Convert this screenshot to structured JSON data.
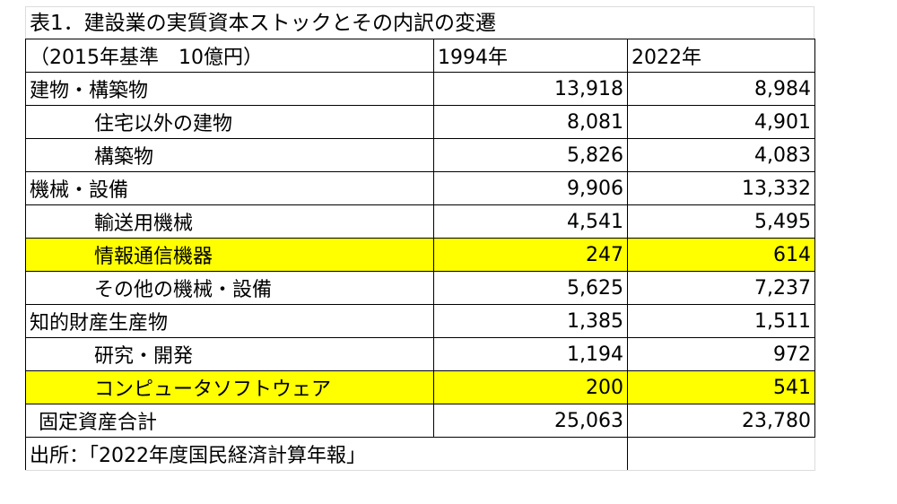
{
  "title": "表1．建設業の実質資本ストックとその内訳の変遷",
  "header": {
    "unit": "（2015年基準　10億円）",
    "col1": "1994年",
    "col2": "2022年"
  },
  "rows": [
    {
      "label": "建物・構築物",
      "v1994": "13,918",
      "v2022": "8,984"
    },
    {
      "label": "住宅以外の建物",
      "v1994": "8,081",
      "v2022": "4,901"
    },
    {
      "label": "構築物",
      "v1994": "5,826",
      "v2022": "4,083"
    },
    {
      "label": "機械・設備",
      "v1994": "9,906",
      "v2022": "13,332"
    },
    {
      "label": "輸送用機械",
      "v1994": "4,541",
      "v2022": "5,495"
    },
    {
      "label": "情報通信機器",
      "v1994": "247",
      "v2022": "614"
    },
    {
      "label": "その他の機械・設備",
      "v1994": "5,625",
      "v2022": "7,237"
    },
    {
      "label": "知的財産生産物",
      "v1994": "1,385",
      "v2022": "1,511"
    },
    {
      "label": "研究・開発",
      "v1994": "1,194",
      "v2022": "972"
    },
    {
      "label": "コンピュータソフトウェア",
      "v1994": "200",
      "v2022": "541"
    },
    {
      "label": "固定資産合計",
      "v1994": "25,063",
      "v2022": "23,780"
    }
  ],
  "source": "出所：「2022年度国民経済計算年報」",
  "colors": {
    "highlight": "#ffff00"
  }
}
